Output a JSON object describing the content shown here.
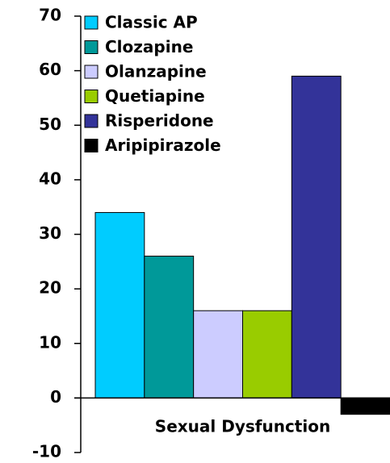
{
  "chart_data": {
    "type": "bar",
    "categories": [
      "Sexual Dysfunction"
    ],
    "series": [
      {
        "name": "Classic AP",
        "color": "#00ccff",
        "values": [
          34
        ]
      },
      {
        "name": "Clozapine",
        "color": "#009999",
        "values": [
          26
        ]
      },
      {
        "name": "Olanzapine",
        "color": "#ccccff",
        "values": [
          16
        ]
      },
      {
        "name": "Quetiapine",
        "color": "#99cc00",
        "values": [
          16
        ]
      },
      {
        "name": "Risperidone",
        "color": "#333399",
        "values": [
          59
        ]
      },
      {
        "name": "Aripipirazole",
        "color": "#000000",
        "values": [
          -3
        ]
      }
    ],
    "ylim": [
      -10,
      70
    ],
    "yticks": [
      -10,
      0,
      10,
      20,
      30,
      40,
      50,
      60,
      70
    ],
    "legend": "upper left"
  }
}
